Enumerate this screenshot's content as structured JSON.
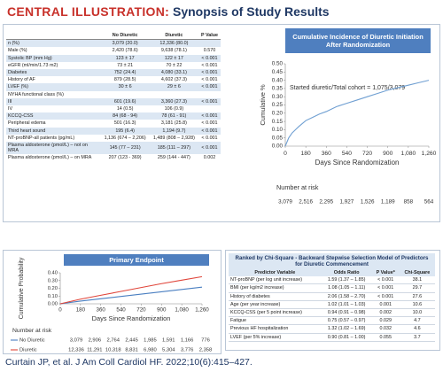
{
  "header": {
    "label": "CENTRAL ILLUSTRATION:",
    "title": "Synopsis of Study Results"
  },
  "table": {
    "columns": [
      "No Diuretic",
      "Diuretic",
      "P Value"
    ],
    "rows": [
      [
        "n (%)",
        "3,079 (20.0)",
        "12,336 (80.0)",
        null
      ],
      [
        "Male (%)",
        "2,420 (78.6)",
        "9,638 (78.1)",
        "0.570"
      ],
      [
        "Systolic BP (mm Hg)",
        "123 ± 17",
        "122 ± 17",
        "< 0.001"
      ],
      [
        "eGFR (ml/min/1.73 m2)",
        "73 ± 21",
        "70 ± 22",
        "< 0.001"
      ],
      [
        "Diabetes",
        "752 (24.4)",
        "4,080 (33.1)",
        "< 0.001"
      ],
      [
        "History of AF",
        "879 (28.5)",
        "4,602 (37.3)",
        "< 0.001"
      ],
      [
        "LVEF (%)",
        "30 ± 6",
        "29 ± 6",
        "< 0.001"
      ],
      [
        "NYHA functional class (%)",
        null,
        null,
        null
      ],
      [
        "III",
        "601 (19.6)",
        "3,360 (27.3)",
        "< 0.001"
      ],
      [
        "IV",
        "14 (0.5)",
        "106 (0.9)",
        null
      ],
      [
        "KCCQ-CSS",
        "84 (68 - 94)",
        "78 (61 - 91)",
        "< 0.001"
      ],
      [
        "Peripheral edema",
        "501 (16.3)",
        "3,181 (25.8)",
        "< 0.001"
      ],
      [
        "Third heart sound",
        "195 (6.4)",
        "1,194 (9.7)",
        "< 0.001"
      ],
      [
        "NT-proBNP-all patients (pg/mL)",
        "1,136 (674 – 2,206)",
        "1,489 (808 – 2,928)",
        "< 0.001"
      ],
      [
        "Plasma aldosterone (pmol/L) – not on MRA",
        "145 (77 – 231)",
        "185 (111 – 297)",
        "< 0.001"
      ],
      [
        "Plasma aldosterone (pmol/L) – on MRA",
        "207 (123 - 369)",
        "259 (144 - 447)",
        "0.002"
      ]
    ]
  },
  "chart_data": [
    {
      "type": "line",
      "title": "Cumulative Incidence of Diuretic Initiation After Randomization",
      "annotation": "Started diuretic/Total cohort = 1,075/3,079",
      "xlabel": "Days Since Randomization",
      "ylabel": "Cumulative %",
      "x": [
        0,
        30,
        60,
        90,
        120,
        180,
        240,
        300,
        360,
        450,
        540,
        630,
        720,
        810,
        900,
        990,
        1080,
        1170,
        1260
      ],
      "series": [
        {
          "color": "#6f9fd2",
          "values": [
            0,
            0.05,
            0.08,
            0.1,
            0.12,
            0.155,
            0.175,
            0.195,
            0.21,
            0.24,
            0.26,
            0.28,
            0.3,
            0.32,
            0.34,
            0.355,
            0.37,
            0.385,
            0.4
          ]
        }
      ],
      "xlim": [
        0,
        1260
      ],
      "ylim": [
        0,
        0.5
      ],
      "xticks": [
        0,
        180,
        360,
        540,
        720,
        900,
        {
          "value": 1080,
          "label": "1,080"
        },
        {
          "value": 1260,
          "label": "1,260"
        }
      ],
      "yticks": [
        {
          "value": 0,
          "label": "0.00"
        },
        0.05,
        {
          "value": 0.1,
          "label": "0.10"
        },
        0.15,
        {
          "value": 0.2,
          "label": "0.20"
        },
        0.25,
        {
          "value": 0.3,
          "label": "0.30"
        },
        0.35,
        {
          "value": 0.4,
          "label": "0.40"
        },
        0.45,
        {
          "value": 0.5,
          "label": "0.50"
        }
      ],
      "risk_label": "Number at risk",
      "at_risk": [
        [
          "3,079",
          "2,516",
          "2,295",
          "1,927",
          "1,526",
          "1,189",
          "858",
          "564"
        ]
      ]
    },
    {
      "type": "line",
      "title": "Primary Endpoint",
      "xlabel": "Days Since Randomization",
      "ylabel": "Cumulative Probability",
      "x": [
        0,
        180,
        360,
        540,
        720,
        900,
        1080,
        1260
      ],
      "series": [
        {
          "name": "No Diuretic",
          "color": "#4a7fc1",
          "values": [
            0,
            0.035,
            0.065,
            0.095,
            0.125,
            0.155,
            0.185,
            0.215
          ]
        },
        {
          "name": "Diuretic",
          "color": "#e0453a",
          "values": [
            0,
            0.06,
            0.11,
            0.16,
            0.21,
            0.26,
            0.305,
            0.35
          ]
        }
      ],
      "xlim": [
        0,
        1260
      ],
      "ylim": [
        0,
        0.4
      ],
      "xticks": [
        0,
        180,
        360,
        540,
        720,
        900,
        {
          "value": 1080,
          "label": "1,080"
        },
        {
          "value": 1260,
          "label": "1,260"
        }
      ],
      "yticks": [
        {
          "value": 0,
          "label": "0.00"
        },
        {
          "value": 0.1,
          "label": "0.10"
        },
        {
          "value": 0.2,
          "label": "0.20"
        },
        {
          "value": 0.3,
          "label": "0.30"
        },
        {
          "value": 0.4,
          "label": "0.40"
        }
      ],
      "risk_label": "Number at risk",
      "at_risk": [
        [
          "3,079",
          "2,906",
          "2,764",
          "2,445",
          "1,985",
          "1,591",
          "1,166",
          "776"
        ],
        [
          "12,336",
          "11,291",
          "10,318",
          "8,831",
          "6,980",
          "5,304",
          "3,776",
          "2,358"
        ]
      ]
    }
  ],
  "table2": {
    "title": "Ranked by Chi-Square - Backward Stepwise Selection Model of Predictors for Diuretic Commencement",
    "columns": [
      "Predictor Variable",
      "Odds Ratio",
      "P Value*",
      "Chi-Square"
    ],
    "rows": [
      [
        "NT-proBNP (per log unit increase)",
        "1.59 (1.37 – 1.85)",
        "< 0.001",
        "38.1"
      ],
      [
        "BMI (per kg/m2 increase)",
        "1.08 (1.05 – 1.11)",
        "< 0.001",
        "29.7"
      ],
      [
        "History of diabetes",
        "2.06 (1.58 – 2.70)",
        "< 0.001",
        "27.6"
      ],
      [
        "Age (per year increase)",
        "1.02 (1.01 – 1.03)",
        "0.001",
        "10.6"
      ],
      [
        "KCCQ-CSS (per 5 point increase)",
        "0.94 (0.91 – 0.98)",
        "0.002",
        "10.0"
      ],
      [
        "Fatigue",
        "0.75 (0.57 – 0.97)",
        "0.029",
        "4.7"
      ],
      [
        "Previous HF hospitalization",
        "1.32 (1.02 – 1.69)",
        "0.032",
        "4.6"
      ],
      [
        "LVEF (per 5% increase)",
        "0.90 (0.81 – 1.00)",
        "0.055",
        "3.7"
      ]
    ]
  },
  "footer": "Curtain JP, et al. J Am Coll Cardiol HF. 2022;10(6):415–427."
}
